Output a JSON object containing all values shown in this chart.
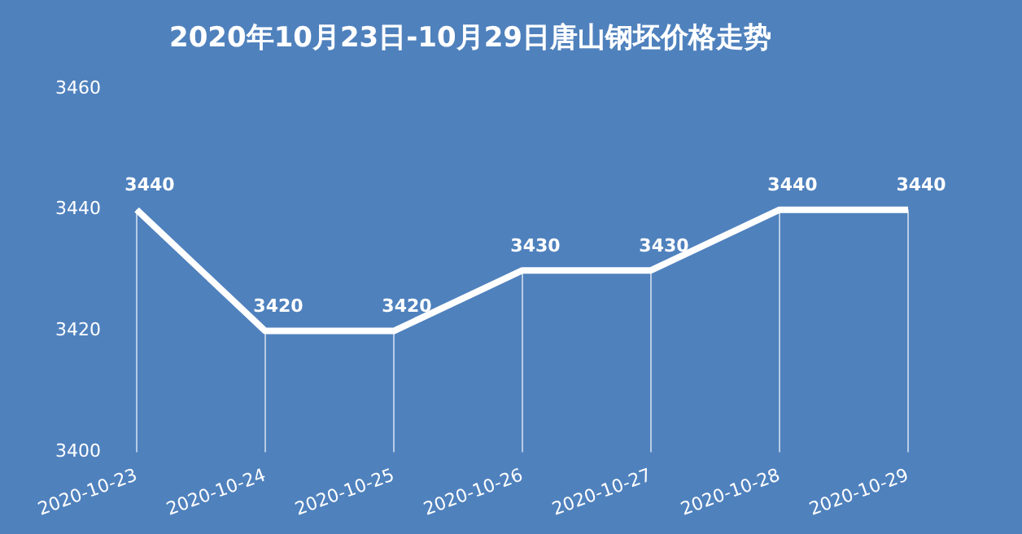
{
  "chart_data": {
    "type": "line",
    "title": "2020年10月23日-10月29日唐山钢坯价格走势",
    "categories": [
      "2020-10-23",
      "2020-10-24",
      "2020-10-25",
      "2020-10-26",
      "2020-10-27",
      "2020-10-28",
      "2020-10-29"
    ],
    "series": [
      {
        "color": "#ffffff",
        "values": [
          3440,
          3420,
          3420,
          3430,
          3430,
          3440,
          3440
        ]
      }
    ],
    "ylim": [
      3400,
      3460
    ],
    "yticks": [
      3400,
      3420,
      3440,
      3460
    ],
    "grid": false,
    "legend": false,
    "data_labels": true,
    "marker": "none",
    "line_style": "solid"
  }
}
